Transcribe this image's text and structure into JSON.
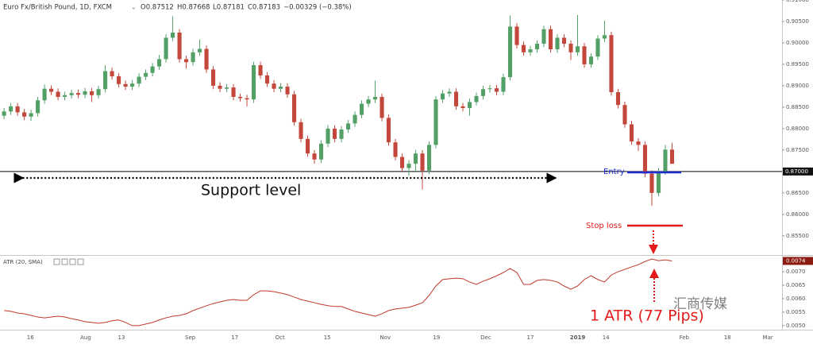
{
  "chart_data": {
    "type": "candlestick",
    "header": [
      "Euro Fx/British Pound, 1D, FXCM",
      "O0.87512",
      "H0.87668",
      "L0.87181",
      "C0.87183",
      "−0.00329 (−0.38%)"
    ],
    "up_color": "#53a067",
    "down_color": "#c3473b",
    "xlim": [
      -0.6,
      115.3
    ],
    "xticks": [
      {
        "value": 3.9,
        "label": "16"
      },
      {
        "value": 12.1,
        "label": "Aug"
      },
      {
        "value": 17.4,
        "label": "13"
      },
      {
        "value": 27.6,
        "label": "Sep"
      },
      {
        "value": 34.2,
        "label": "17"
      },
      {
        "value": 40.9,
        "label": "Oct"
      },
      {
        "value": 47.9,
        "label": "15"
      },
      {
        "value": 56.5,
        "label": "Nov"
      },
      {
        "value": 64.1,
        "label": "19"
      },
      {
        "value": 71.4,
        "label": "Dec"
      },
      {
        "value": 78,
        "label": "17"
      },
      {
        "value": 85,
        "label": "2019"
      },
      {
        "value": 89.2,
        "label": "14"
      },
      {
        "value": 100.8,
        "label": "Feb"
      },
      {
        "value": 107.2,
        "label": "18"
      },
      {
        "value": 113.2,
        "label": "Mar"
      }
    ],
    "ylim": [
      0.8507,
      0.91
    ],
    "yticks": [
      {
        "value": 0.91,
        "label": "0.91000"
      },
      {
        "value": 0.905,
        "label": "0.90500"
      },
      {
        "value": 0.9,
        "label": "0.90000"
      },
      {
        "value": 0.895,
        "label": "0.89500"
      },
      {
        "value": 0.89,
        "label": "0.89000"
      },
      {
        "value": 0.885,
        "label": "0.88500"
      },
      {
        "value": 0.88,
        "label": "0.88000"
      },
      {
        "value": 0.875,
        "label": "0.87500"
      },
      {
        "value": 0.865,
        "label": "0.86500"
      },
      {
        "value": 0.86,
        "label": "0.86000"
      },
      {
        "value": 0.855,
        "label": "0.85500"
      }
    ],
    "hline": {
      "value": 0.87,
      "label": "0.87000"
    },
    "open": [
      0.883,
      0.884,
      0.8852,
      0.8838,
      0.8828,
      0.8836,
      0.8866,
      0.8893,
      0.8886,
      0.8874,
      0.8878,
      0.8883,
      0.8879,
      0.8887,
      0.8878,
      0.8892,
      0.8934,
      0.8922,
      0.8904,
      0.8898,
      0.8905,
      0.8921,
      0.893,
      0.8945,
      0.8962,
      0.9012,
      0.9024,
      0.8962,
      0.8955,
      0.8978,
      0.8986,
      0.8938,
      0.89,
      0.8893,
      0.8896,
      0.8874,
      0.8871,
      0.8868,
      0.8948,
      0.8924,
      0.8905,
      0.8893,
      0.8898,
      0.888,
      0.8815,
      0.8776,
      0.8742,
      0.8728,
      0.8765,
      0.88,
      0.8776,
      0.8798,
      0.8812,
      0.8832,
      0.8858,
      0.8868,
      0.8874,
      0.8825,
      0.8768,
      0.8734,
      0.8708,
      0.8718,
      0.8742,
      0.8702,
      0.8762,
      0.8868,
      0.8882,
      0.8886,
      0.8852,
      0.8848,
      0.8862,
      0.8876,
      0.8892,
      0.8894,
      0.8886,
      0.892,
      0.9038,
      0.8995,
      0.8978,
      0.8985,
      0.8998,
      0.9032,
      0.8985,
      0.9012,
      0.8998,
      0.8978,
      0.8992,
      0.895,
      0.8968,
      0.901,
      0.9018,
      0.8885,
      0.8855,
      0.881,
      0.877,
      0.8762,
      0.8695,
      0.865,
      0.87,
      0.8751
    ],
    "high": [
      0.8848,
      0.886,
      0.886,
      0.8846,
      0.8844,
      0.8874,
      0.8903,
      0.8901,
      0.8894,
      0.8886,
      0.8891,
      0.8891,
      0.8895,
      0.8895,
      0.89,
      0.8948,
      0.8942,
      0.893,
      0.8912,
      0.8913,
      0.8929,
      0.8938,
      0.8953,
      0.8972,
      0.902,
      0.9062,
      0.9032,
      0.897,
      0.8986,
      0.9008,
      0.8994,
      0.8946,
      0.8908,
      0.8904,
      0.8904,
      0.8882,
      0.8879,
      0.8956,
      0.8956,
      0.8932,
      0.8913,
      0.8906,
      0.8906,
      0.8888,
      0.8823,
      0.8784,
      0.875,
      0.8773,
      0.8808,
      0.8808,
      0.8806,
      0.882,
      0.884,
      0.8866,
      0.8876,
      0.8912,
      0.8882,
      0.8833,
      0.8776,
      0.8742,
      0.8726,
      0.875,
      0.875,
      0.877,
      0.8876,
      0.889,
      0.8894,
      0.8894,
      0.886,
      0.887,
      0.8884,
      0.89,
      0.8902,
      0.8902,
      0.8928,
      0.9064,
      0.9046,
      0.9003,
      0.8993,
      0.9006,
      0.904,
      0.904,
      0.902,
      0.902,
      0.9006,
      0.9065,
      0.9,
      0.8976,
      0.9018,
      0.9052,
      0.9026,
      0.8893,
      0.8863,
      0.8818,
      0.8778,
      0.877,
      0.8703,
      0.8708,
      0.8762,
      0.8767
    ],
    "low": [
      0.8822,
      0.8832,
      0.883,
      0.882,
      0.8818,
      0.8828,
      0.8858,
      0.8878,
      0.8866,
      0.8866,
      0.887,
      0.8871,
      0.8871,
      0.8862,
      0.887,
      0.8884,
      0.8914,
      0.8896,
      0.889,
      0.889,
      0.8897,
      0.8913,
      0.8922,
      0.8937,
      0.8954,
      0.9004,
      0.8954,
      0.894,
      0.8947,
      0.897,
      0.893,
      0.8892,
      0.8885,
      0.8885,
      0.8866,
      0.8863,
      0.8852,
      0.886,
      0.8916,
      0.8897,
      0.8885,
      0.8885,
      0.8872,
      0.8807,
      0.8768,
      0.8734,
      0.8718,
      0.872,
      0.8757,
      0.8768,
      0.8768,
      0.879,
      0.8804,
      0.8824,
      0.885,
      0.886,
      0.8817,
      0.876,
      0.8726,
      0.87,
      0.869,
      0.87,
      0.8658,
      0.8694,
      0.8754,
      0.886,
      0.8874,
      0.8844,
      0.884,
      0.883,
      0.8854,
      0.8868,
      0.8884,
      0.8878,
      0.8878,
      0.8912,
      0.8987,
      0.897,
      0.897,
      0.8977,
      0.899,
      0.8977,
      0.8977,
      0.899,
      0.896,
      0.897,
      0.8942,
      0.8942,
      0.896,
      0.9002,
      0.8877,
      0.8847,
      0.8802,
      0.8762,
      0.8748,
      0.8687,
      0.862,
      0.8642,
      0.8692,
      0.8718
    ],
    "close": [
      0.884,
      0.8852,
      0.8838,
      0.8828,
      0.8836,
      0.8866,
      0.8893,
      0.8886,
      0.8874,
      0.8878,
      0.8883,
      0.8879,
      0.8887,
      0.8878,
      0.8892,
      0.8934,
      0.8922,
      0.8904,
      0.8898,
      0.8905,
      0.8921,
      0.893,
      0.8945,
      0.8962,
      0.9012,
      0.9024,
      0.8962,
      0.8955,
      0.8978,
      0.8986,
      0.8938,
      0.89,
      0.8893,
      0.8896,
      0.8874,
      0.8871,
      0.8868,
      0.8948,
      0.8924,
      0.8905,
      0.8893,
      0.8898,
      0.888,
      0.8815,
      0.8776,
      0.8742,
      0.8728,
      0.8765,
      0.88,
      0.8776,
      0.8798,
      0.8812,
      0.8832,
      0.8858,
      0.8868,
      0.8874,
      0.8825,
      0.8768,
      0.8734,
      0.8708,
      0.8718,
      0.8742,
      0.8702,
      0.8762,
      0.8868,
      0.8882,
      0.8886,
      0.8852,
      0.8848,
      0.8862,
      0.8876,
      0.8892,
      0.8894,
      0.8886,
      0.892,
      0.9038,
      0.8995,
      0.8978,
      0.8985,
      0.8998,
      0.9032,
      0.8985,
      0.9012,
      0.8998,
      0.8978,
      0.8992,
      0.895,
      0.8968,
      0.901,
      0.9018,
      0.8885,
      0.8855,
      0.881,
      0.877,
      0.8762,
      0.8695,
      0.865,
      0.87,
      0.8751,
      0.8718
    ],
    "indicator": {
      "type": "line",
      "name": "ATR (20, SMA)",
      "color": "#c0392b",
      "ylim": [
        0.00485,
        0.00759
      ],
      "yticks": [
        {
          "value": 0.007,
          "label": "0.0070"
        },
        {
          "value": 0.0065,
          "label": "0.0065"
        },
        {
          "value": 0.006,
          "label": "0.0060"
        },
        {
          "value": 0.0055,
          "label": "0.0055"
        },
        {
          "value": 0.005,
          "label": "0.0050"
        }
      ],
      "last_tag": {
        "value": 0.0074,
        "label": "0.0074"
      },
      "values": [
        0.00556,
        0.00553,
        0.00547,
        0.00544,
        0.00538,
        0.00532,
        0.00529,
        0.00532,
        0.00535,
        0.00532,
        0.00526,
        0.00521,
        0.00515,
        0.00512,
        0.00509,
        0.00512,
        0.00518,
        0.00521,
        0.00512,
        0.005,
        0.005,
        0.00506,
        0.00512,
        0.00521,
        0.00529,
        0.00535,
        0.00538,
        0.00544,
        0.00556,
        0.00565,
        0.00574,
        0.00582,
        0.00588,
        0.00594,
        0.00597,
        0.00594,
        0.00594,
        0.00615,
        0.00629,
        0.00629,
        0.00626,
        0.00621,
        0.00615,
        0.00606,
        0.00597,
        0.00591,
        0.00585,
        0.00579,
        0.00574,
        0.00571,
        0.00571,
        0.00562,
        0.00553,
        0.00547,
        0.00541,
        0.00535,
        0.00544,
        0.00556,
        0.00562,
        0.00565,
        0.00568,
        0.00576,
        0.00585,
        0.00612,
        0.00647,
        0.00671,
        0.00674,
        0.00676,
        0.00674,
        0.00662,
        0.00653,
        0.00665,
        0.00674,
        0.00685,
        0.00697,
        0.00712,
        0.00697,
        0.00653,
        0.00653,
        0.00668,
        0.00671,
        0.00668,
        0.00662,
        0.00647,
        0.00635,
        0.00647,
        0.00671,
        0.00685,
        0.00671,
        0.00662,
        0.00688,
        0.007,
        0.00709,
        0.00718,
        0.00726,
        0.00738,
        0.00747,
        0.00741,
        0.00744,
        0.0074
      ]
    },
    "annotations": {
      "support": "Support level",
      "entry": "Entry",
      "stop": "Stop loss",
      "atr": "1 ATR (77 Pips)",
      "watermark": "汇商传媒"
    }
  }
}
